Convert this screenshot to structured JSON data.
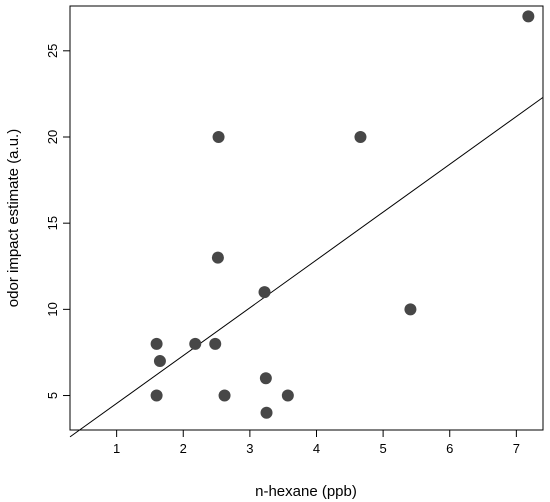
{
  "chart_data": {
    "type": "scatter",
    "xlabel": "n-hexane (ppb)",
    "ylabel": "odor impact estimate (a.u.)",
    "xlim": [
      0.3,
      7.4
    ],
    "ylim": [
      3.0,
      27.6
    ],
    "x_ticks": [
      "1",
      "2",
      "3",
      "4",
      "5",
      "6",
      "7"
    ],
    "y_ticks": [
      "5",
      "10",
      "15",
      "20",
      "25"
    ],
    "grid": false,
    "point_color": "#474747",
    "points": [
      {
        "x": 1.6,
        "y": 8
      },
      {
        "x": 1.6,
        "y": 5
      },
      {
        "x": 1.65,
        "y": 7
      },
      {
        "x": 2.18,
        "y": 8
      },
      {
        "x": 2.48,
        "y": 8
      },
      {
        "x": 2.52,
        "y": 13
      },
      {
        "x": 2.53,
        "y": 20
      },
      {
        "x": 2.62,
        "y": 5
      },
      {
        "x": 3.22,
        "y": 11
      },
      {
        "x": 3.24,
        "y": 6
      },
      {
        "x": 3.25,
        "y": 4
      },
      {
        "x": 3.57,
        "y": 5
      },
      {
        "x": 4.66,
        "y": 20
      },
      {
        "x": 5.41,
        "y": 10
      },
      {
        "x": 7.18,
        "y": 27
      }
    ],
    "trendline": {
      "x": [
        0.3,
        7.4
      ],
      "y": [
        2.6,
        22.3
      ]
    }
  }
}
